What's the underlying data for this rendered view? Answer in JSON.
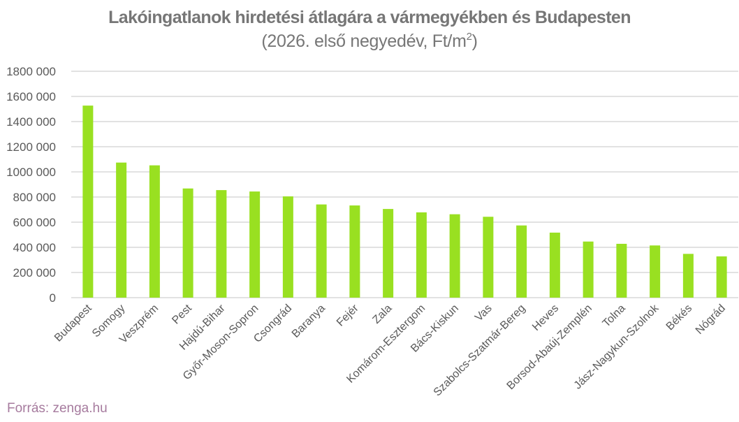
{
  "title": "Lakóingatlanok hirdetési átlagára a vármegyékben és Budapesten",
  "subtitle_main": "(2026. első negyedév, Ft/m",
  "subtitle_sup": "2",
  "subtitle_close": ")",
  "source": "Forrás: zenga.hu",
  "colors": {
    "bar": "#99e021",
    "title": "#767676",
    "axis_text": "#595959",
    "grid": "#d9d9d9",
    "source": "#a67b9e"
  },
  "chart_data": {
    "type": "bar",
    "title": "Lakóingatlanok hirdetési átlagára a vármegyékben és Budapesten",
    "subtitle": "(2026. első negyedév, Ft/m2)",
    "xlabel": "",
    "ylabel": "",
    "ylim": [
      0,
      1800000
    ],
    "yticks": [
      0,
      200000,
      400000,
      600000,
      800000,
      1000000,
      1200000,
      1400000,
      1600000,
      1800000
    ],
    "ytick_labels": [
      "0",
      "200 000",
      "400 000",
      "600 000",
      "800 000",
      "1000 000",
      "1200 000",
      "1400 000",
      "1600 000",
      "1800 000"
    ],
    "grid": true,
    "legend": null,
    "categories": [
      "Budapest",
      "Somogy",
      "Veszprém",
      "Pest",
      "Hajdú-Bihar",
      "Győr-Moson-Sopron",
      "Csongrád",
      "Baranya",
      "Fejér",
      "Zala",
      "Komárom-Esztergom",
      "Bács-Kiskun",
      "Vas",
      "Szabolcs-Szatmár-Bereg",
      "Heves",
      "Borsod-Abaúj-Zemplén",
      "Tolna",
      "Jász-Nagykun-Szolnok",
      "Békés",
      "Nógrád"
    ],
    "values": [
      1527000,
      1074000,
      1052000,
      868000,
      855000,
      844000,
      805000,
      741000,
      733000,
      705000,
      678000,
      663000,
      643000,
      574000,
      517000,
      446000,
      428000,
      415000,
      348000,
      328000
    ]
  }
}
